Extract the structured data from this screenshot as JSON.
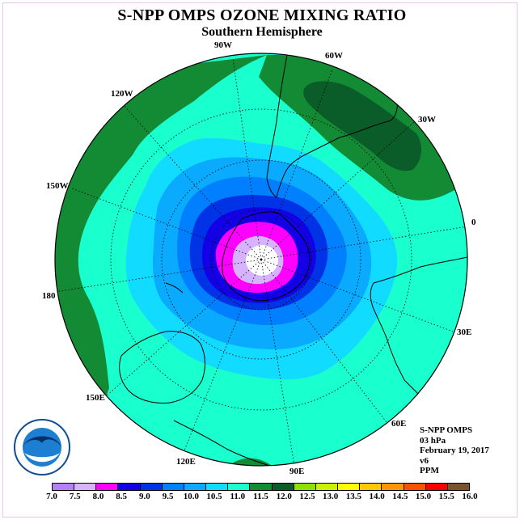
{
  "title": "S-NPP OMPS OZONE MIXING RATIO",
  "subtitle": "Southern Hemisphere",
  "map": {
    "projection": "south polar stereographic",
    "lon_labels": [
      "90W",
      "60W",
      "30W",
      "0",
      "30E",
      "60E",
      "90E",
      "120E",
      "150E",
      "180",
      "150W",
      "120W"
    ]
  },
  "info": {
    "instrument": "S-NPP OMPS",
    "level": "03 hPa",
    "date": "February 19, 2017",
    "version": "v6",
    "units": "PPM"
  },
  "legend": {
    "ticks": [
      "7.0",
      "7.5",
      "8.0",
      "8.5",
      "9.0",
      "9.5",
      "10.0",
      "10.5",
      "11.0",
      "11.5",
      "12.0",
      "12.5",
      "13.0",
      "13.5",
      "14.0",
      "14.5",
      "15.0",
      "15.5",
      "16.0"
    ],
    "colors": [
      "#b480f5",
      "#d6b2ff",
      "#ff00ff",
      "#1400e6",
      "#0032e6",
      "#0080ff",
      "#0aaaff",
      "#11dcff",
      "#19ffce",
      "#138a34",
      "#0a5c28",
      "#8ee000",
      "#c8f000",
      "#ffff00",
      "#ffc800",
      "#ff9600",
      "#ff5000",
      "#ff0000",
      "#7a5230"
    ]
  }
}
